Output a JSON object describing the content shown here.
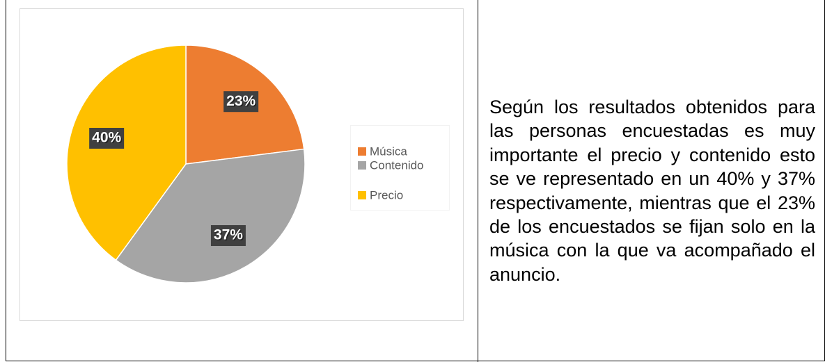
{
  "chart_data": {
    "type": "pie",
    "categories": [
      "Música",
      "Contenido",
      "Precio"
    ],
    "values": [
      23,
      37,
      40
    ],
    "value_labels": [
      "23%",
      "37%",
      "40%"
    ],
    "colors": [
      "#ED7D31",
      "#A5A5A5",
      "#FFC000"
    ],
    "legend": "right"
  },
  "paragraph": "Según los resultados obtenidos para las personas encuestadas es muy importante el precio y contenido esto se ve representado en un 40% y 37% respectivamente, mientras que el 23% de los encuestados se fijan solo en la música con la que va acompañado el anuncio."
}
